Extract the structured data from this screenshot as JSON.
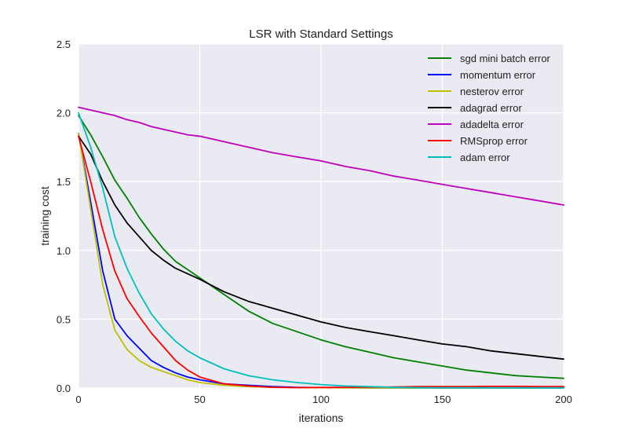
{
  "chart_data": {
    "type": "line",
    "title": "LSR with Standard Settings",
    "xlabel": "iterations",
    "ylabel": "training cost",
    "xlim": [
      0,
      200
    ],
    "ylim": [
      0,
      2.5
    ],
    "xticks": [
      0,
      50,
      100,
      150,
      200
    ],
    "xtick_labels": [
      "0",
      "50",
      "100",
      "150",
      "200"
    ],
    "yticks": [
      0.0,
      0.5,
      1.0,
      1.5,
      2.0,
      2.5
    ],
    "ytick_labels": [
      "0.0",
      "0.5",
      "1.0",
      "1.5",
      "2.0",
      "2.5"
    ],
    "grid": true,
    "background": "#EAEAF2",
    "legend_position": "top-right",
    "x": [
      0,
      5,
      10,
      15,
      20,
      25,
      30,
      35,
      40,
      45,
      50,
      60,
      70,
      80,
      90,
      100,
      110,
      120,
      130,
      140,
      150,
      160,
      170,
      180,
      190,
      200
    ],
    "series": [
      {
        "name": "sgd mini batch error",
        "color": "#008000",
        "values": [
          1.98,
          1.84,
          1.68,
          1.51,
          1.38,
          1.24,
          1.12,
          1.01,
          0.92,
          0.86,
          0.8,
          0.68,
          0.56,
          0.47,
          0.41,
          0.35,
          0.3,
          0.26,
          0.22,
          0.19,
          0.16,
          0.13,
          0.11,
          0.09,
          0.08,
          0.07
        ]
      },
      {
        "name": "momentum error",
        "color": "#0000FF",
        "values": [
          1.85,
          1.35,
          0.85,
          0.5,
          0.38,
          0.29,
          0.2,
          0.15,
          0.11,
          0.08,
          0.06,
          0.03,
          0.02,
          0.01,
          0.005,
          0.003,
          0.002,
          0.001,
          0.001,
          0.001,
          0.001,
          0.001,
          0.001,
          0.001,
          0.001,
          0.001
        ]
      },
      {
        "name": "nesterov error",
        "color": "#BFBF00",
        "values": [
          1.85,
          1.3,
          0.75,
          0.42,
          0.28,
          0.2,
          0.15,
          0.12,
          0.09,
          0.06,
          0.04,
          0.02,
          0.01,
          0.005,
          0.003,
          0.002,
          0.001,
          0.001,
          0.001,
          0.001,
          0.001,
          0.001,
          0.001,
          0.001,
          0.001,
          0.001
        ]
      },
      {
        "name": "adagrad error",
        "color": "#000000",
        "values": [
          1.83,
          1.7,
          1.5,
          1.33,
          1.2,
          1.1,
          1.0,
          0.93,
          0.87,
          0.83,
          0.79,
          0.7,
          0.63,
          0.58,
          0.53,
          0.48,
          0.44,
          0.41,
          0.38,
          0.35,
          0.32,
          0.3,
          0.27,
          0.25,
          0.23,
          0.21
        ]
      },
      {
        "name": "adadelta error",
        "color": "#BF00BF",
        "values": [
          2.04,
          2.02,
          2.0,
          1.98,
          1.95,
          1.93,
          1.9,
          1.88,
          1.86,
          1.84,
          1.83,
          1.79,
          1.75,
          1.71,
          1.68,
          1.65,
          1.61,
          1.58,
          1.54,
          1.51,
          1.48,
          1.45,
          1.42,
          1.39,
          1.36,
          1.33
        ]
      },
      {
        "name": "RMSprop error",
        "color": "#FF0000",
        "values": [
          1.83,
          1.5,
          1.15,
          0.85,
          0.65,
          0.52,
          0.4,
          0.3,
          0.2,
          0.13,
          0.08,
          0.03,
          0.015,
          0.005,
          0.003,
          0.004,
          0.005,
          0.006,
          0.008,
          0.01,
          0.01,
          0.01,
          0.012,
          0.012,
          0.01,
          0.01
        ]
      },
      {
        "name": "adam error",
        "color": "#00BFBF",
        "values": [
          2.0,
          1.75,
          1.45,
          1.1,
          0.87,
          0.69,
          0.54,
          0.43,
          0.34,
          0.27,
          0.22,
          0.14,
          0.09,
          0.06,
          0.04,
          0.025,
          0.015,
          0.01,
          0.005,
          0.003,
          0.002,
          0.002,
          0.001,
          0.001,
          0.001,
          0.001
        ]
      }
    ]
  }
}
